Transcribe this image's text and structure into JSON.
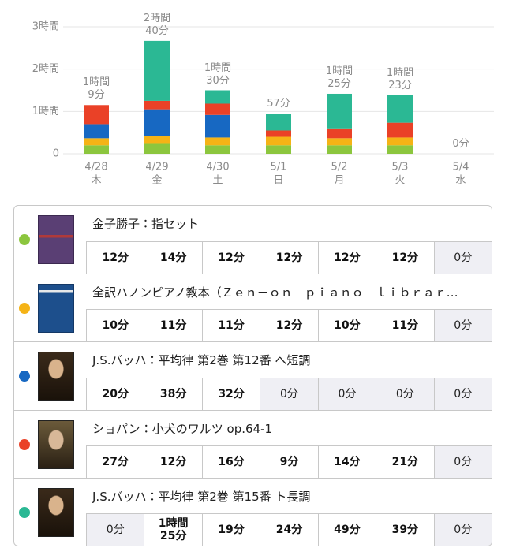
{
  "chart_data": {
    "type": "stacked-bar",
    "categories": [
      "4/28",
      "4/29",
      "4/30",
      "5/1",
      "5/2",
      "5/3",
      "5/4"
    ],
    "weekdays": [
      "木",
      "金",
      "土",
      "日",
      "月",
      "火",
      "水"
    ],
    "ylim": [
      0,
      180
    ],
    "yticks": [
      0,
      {
        "value": 60,
        "label": "1時間"
      },
      {
        "value": 120,
        "label": "2時間"
      },
      {
        "value": 180,
        "label": "3時間"
      }
    ],
    "grid": true,
    "total_labels": [
      "1時間\n9分",
      "2時間\n40分",
      "1時間\n30分",
      "57分",
      "1時間\n25分",
      "1時間\n23分",
      "0分"
    ],
    "series": [
      {
        "name": "金子勝子：指セット",
        "color": "#8cc63e",
        "values": [
          12,
          14,
          12,
          12,
          12,
          12,
          0
        ],
        "value_labels": [
          "12分",
          "14分",
          "12分",
          "12分",
          "12分",
          "12分",
          "0分"
        ]
      },
      {
        "name": "全訳ハノンピアノ教本（Ｚｅｎ－ｏｎ　ｐｉａｎｏ　ｌｉｂｒａｒ…",
        "color": "#f5b316",
        "values": [
          10,
          11,
          11,
          12,
          10,
          11,
          0
        ],
        "value_labels": [
          "10分",
          "11分",
          "11分",
          "12分",
          "10分",
          "11分",
          "0分"
        ]
      },
      {
        "name": "J.S.バッハ：平均律 第2巻 第12番 へ短調",
        "color": "#1768c2",
        "values": [
          20,
          38,
          32,
          0,
          0,
          0,
          0
        ],
        "value_labels": [
          "20分",
          "38分",
          "32分",
          "0分",
          "0分",
          "0分",
          "0分"
        ]
      },
      {
        "name": "ショパン：小犬のワルツ op.64-1",
        "color": "#ea4127",
        "values": [
          27,
          12,
          16,
          9,
          14,
          21,
          0
        ],
        "value_labels": [
          "27分",
          "12分",
          "16分",
          "9分",
          "14分",
          "21分",
          "0分"
        ]
      },
      {
        "name": "J.S.バッハ：平均律 第2巻 第15番 ト長調",
        "color": "#2bb894",
        "values": [
          0,
          85,
          19,
          24,
          49,
          39,
          0
        ],
        "value_labels": [
          "0分",
          "1時間\n25分",
          "19分",
          "24分",
          "49分",
          "39分",
          "0分"
        ]
      }
    ]
  }
}
